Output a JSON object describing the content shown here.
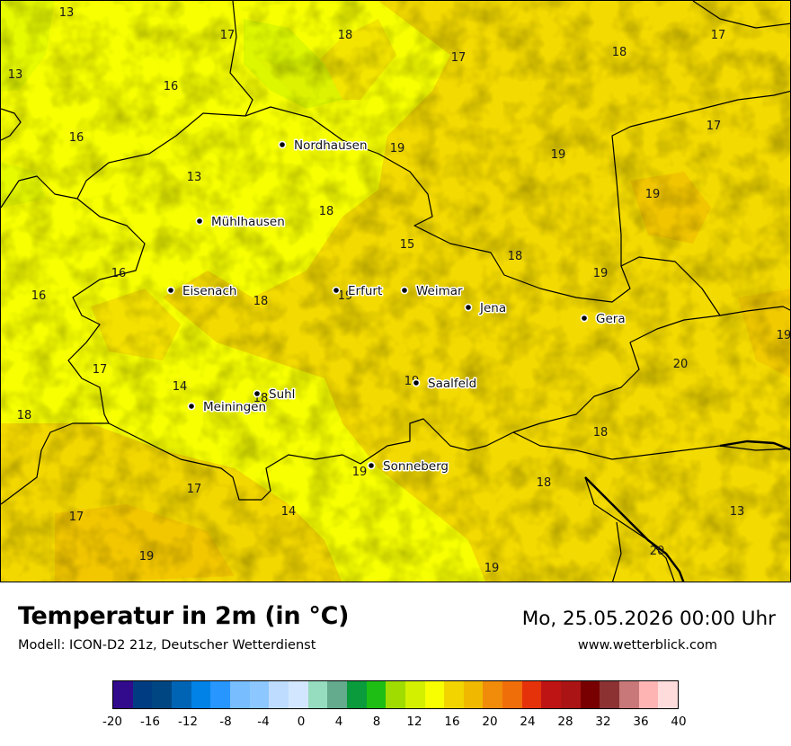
{
  "map": {
    "title": "Temperatur in 2m (in °C)",
    "model": "Modell: ICON-D2 21z, Deutscher Wetterdienst",
    "datetime": "Mo, 25.05.2026 00:00 Uhr",
    "website": "www.wetterblick.com",
    "base_color": "#f7ff00",
    "warm_color": "#f2d400",
    "cool_color": "#d6f500",
    "hot_color": "#f0b900"
  },
  "cities": [
    {
      "name": "Nordhausen"
    },
    {
      "name": "Mühlhausen"
    },
    {
      "name": "Eisenach"
    },
    {
      "name": "Erfurt"
    },
    {
      "name": "Weimar"
    },
    {
      "name": "Jena"
    },
    {
      "name": "Gera"
    },
    {
      "name": "Suhl"
    },
    {
      "name": "Meiningen"
    },
    {
      "name": "Saalfeld"
    },
    {
      "name": "Sonneberg"
    }
  ],
  "values": [
    "13",
    "17",
    "18",
    "17",
    "18",
    "17",
    "13",
    "16",
    "16",
    "19",
    "19",
    "17",
    "13",
    "18",
    "19",
    "15",
    "18",
    "19",
    "16",
    "16",
    "18",
    "19",
    "19",
    "20",
    "17",
    "14",
    "18",
    "18",
    "19",
    "18",
    "18",
    "19",
    "17",
    "14",
    "13",
    "17",
    "19",
    "19",
    "20",
    "18",
    "17"
  ],
  "legend": {
    "ticks": [
      "-20",
      "-16",
      "-12",
      "-8",
      "-4",
      "0",
      "4",
      "8",
      "12",
      "16",
      "20",
      "24",
      "28",
      "32",
      "36",
      "40"
    ],
    "colors": [
      "#320a8c",
      "#003c82",
      "#004682",
      "#0064b4",
      "#0082e6",
      "#2896ff",
      "#78beff",
      "#8cc8ff",
      "#bedcff",
      "#d2e6ff",
      "#96dcbe",
      "#64aa8c",
      "#0a9b3c",
      "#1ebe14",
      "#a0dc00",
      "#d2f000",
      "#f7ff00",
      "#f2d400",
      "#f0b900",
      "#f08c0a",
      "#f06e0a",
      "#e6320a",
      "#be1414",
      "#aa1414",
      "#780000",
      "#8c3232",
      "#c87878",
      "#ffb4b4",
      "#ffdcdc"
    ]
  }
}
